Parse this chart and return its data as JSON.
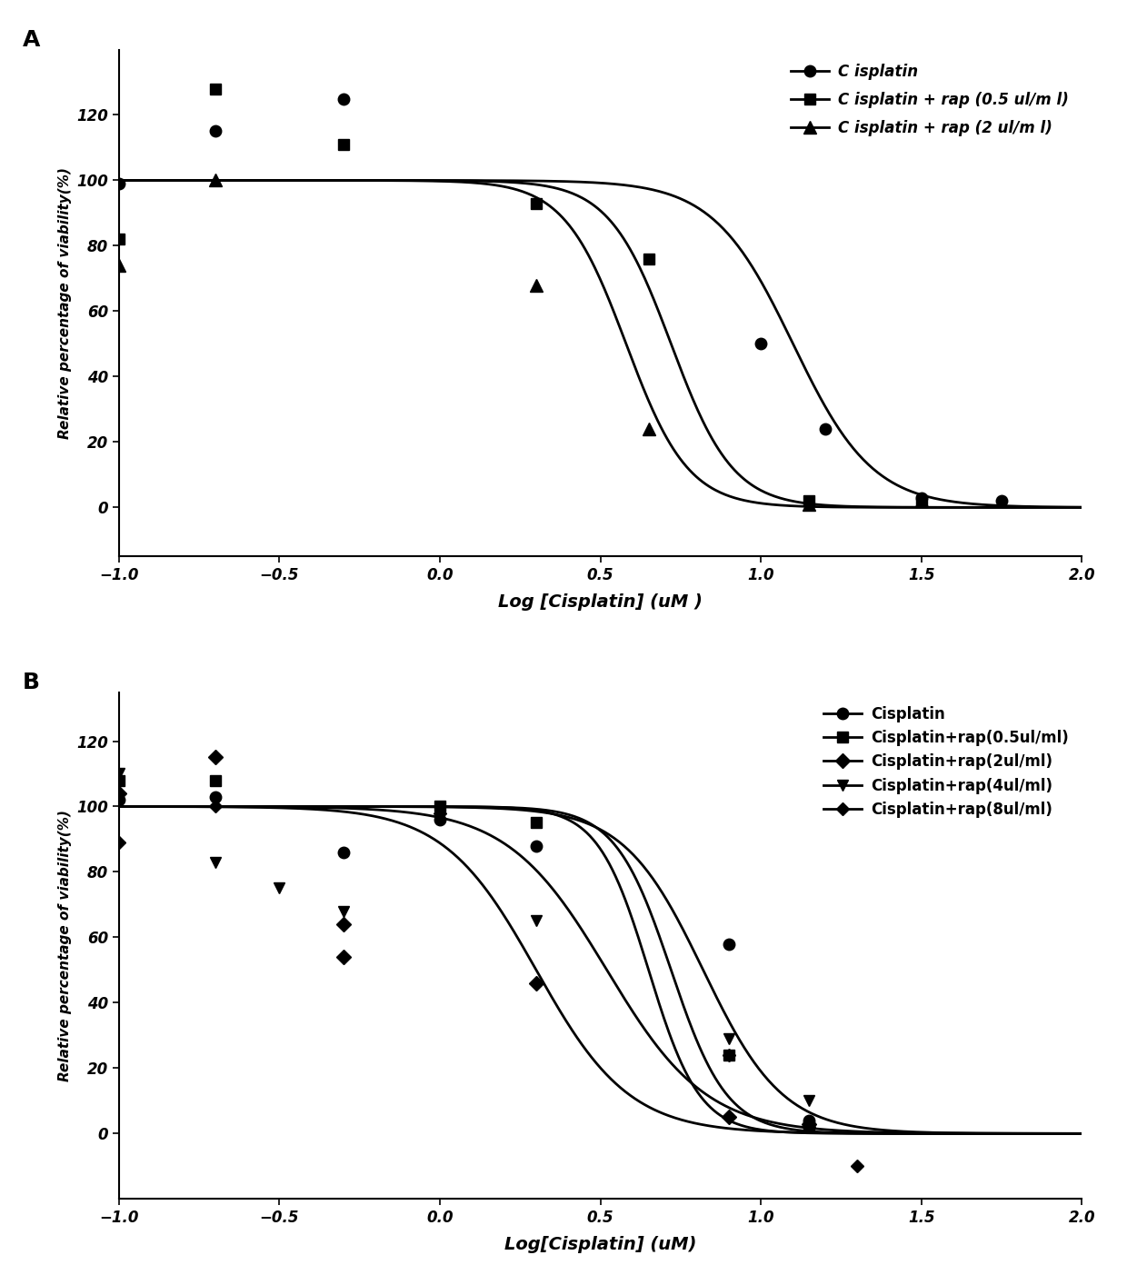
{
  "panel_A": {
    "title_label": "A",
    "xlabel": "Log [Cisplatin] (uM )",
    "ylabel": "Relative percentage of viability(%)",
    "xlim": [
      -1.0,
      2.0
    ],
    "ylim": [
      -15,
      140
    ],
    "xticks": [
      -1.0,
      -0.5,
      0.0,
      0.5,
      1.0,
      1.5,
      2.0
    ],
    "yticks": [
      0,
      20,
      40,
      60,
      80,
      100,
      120
    ],
    "series": [
      {
        "label": "C isplatin",
        "marker": "o",
        "data_x": [
          -1.0,
          -0.7,
          -0.3,
          1.0,
          1.2,
          1.5,
          1.75
        ],
        "data_y": [
          99,
          115,
          125,
          50,
          24,
          3,
          2
        ],
        "ec50": 1.1,
        "hill": 3.5,
        "top": 100,
        "bottom": 0
      },
      {
        "label": "C isplatin + rap (0.5 ul/m l)",
        "marker": "s",
        "data_x": [
          -1.0,
          -0.7,
          -0.3,
          0.3,
          0.65,
          1.15,
          1.5
        ],
        "data_y": [
          82,
          128,
          111,
          93,
          76,
          2,
          2
        ],
        "ec50": 0.72,
        "hill": 4.5,
        "top": 100,
        "bottom": 0
      },
      {
        "label": "C isplatin + rap (2 ul/m l)",
        "marker": "^",
        "data_x": [
          -1.0,
          -0.7,
          0.3,
          0.65,
          1.15,
          1.5
        ],
        "data_y": [
          74,
          100,
          68,
          24,
          1,
          2
        ],
        "ec50": 0.58,
        "hill": 4.5,
        "top": 100,
        "bottom": 0
      }
    ]
  },
  "panel_B": {
    "title_label": "B",
    "xlabel": "Log[Cisplatin] (uM)",
    "ylabel": "Relative percentage of viability(%)",
    "xlim": [
      -1.0,
      2.0
    ],
    "ylim": [
      -20,
      135
    ],
    "xticks": [
      -1.0,
      -0.5,
      0.0,
      0.5,
      1.0,
      1.5,
      2.0
    ],
    "yticks": [
      0,
      20,
      40,
      60,
      80,
      100,
      120
    ],
    "series": [
      {
        "label": "Cisplatin",
        "marker": "o",
        "data_x": [
          -1.0,
          -0.7,
          -0.3,
          0.0,
          0.3,
          0.9,
          1.15
        ],
        "data_y": [
          102,
          103,
          86,
          96,
          88,
          58,
          4
        ],
        "ec50": 0.82,
        "hill": 3.5,
        "top": 100,
        "bottom": 0
      },
      {
        "label": "Cisplatin+rap(0.5ul/ml)",
        "marker": "s",
        "data_x": [
          -1.0,
          -0.7,
          0.0,
          0.3,
          0.9,
          1.15
        ],
        "data_y": [
          108,
          108,
          100,
          95,
          24,
          2
        ],
        "ec50": 0.72,
        "hill": 5.0,
        "top": 100,
        "bottom": 0
      },
      {
        "label": "Cisplatin+rap(2ul/ml)",
        "marker": "D",
        "data_x": [
          -1.0,
          -0.7,
          -0.3,
          -0.3,
          0.3,
          0.9,
          1.15
        ],
        "data_y": [
          104,
          115,
          64,
          54,
          46,
          5,
          3
        ],
        "ec50": 0.3,
        "hill": 3.0,
        "top": 100,
        "bottom": 0
      },
      {
        "label": "Cisplatin+rap(4ul/ml)",
        "marker": "v",
        "data_x": [
          -1.0,
          -0.7,
          -0.5,
          -0.3,
          0.3,
          0.9,
          1.15
        ],
        "data_y": [
          110,
          83,
          75,
          68,
          65,
          29,
          10
        ],
        "ec50": 0.52,
        "hill": 2.8,
        "top": 100,
        "bottom": 0
      },
      {
        "label": "Cisplatin+rap(8ul/ml)",
        "marker": "D",
        "data_x": [
          -1.0,
          -0.7,
          0.0,
          0.9,
          1.15,
          1.3
        ],
        "data_y": [
          89,
          100,
          98,
          24,
          2,
          -10
        ],
        "ec50": 0.65,
        "hill": 5.5,
        "top": 100,
        "bottom": 0
      }
    ],
    "b_markers": [
      "o",
      "s",
      "D",
      "v",
      "D"
    ],
    "b_marker_sizes": [
      9,
      9,
      8,
      9,
      7
    ]
  }
}
